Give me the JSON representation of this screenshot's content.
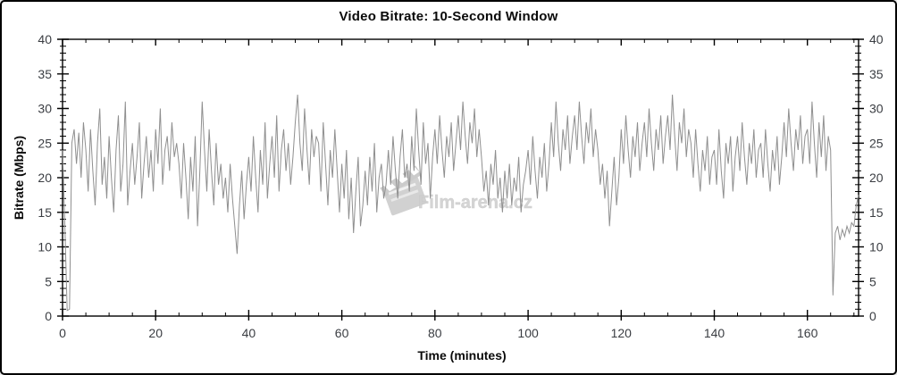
{
  "chart_data": {
    "type": "line",
    "title": "Video Bitrate: 10-Second Window",
    "xlabel": "Time (minutes)",
    "ylabel": "Bitrate (Mbps)",
    "xlim": [
      0,
      171
    ],
    "ylim": [
      0,
      40
    ],
    "x_major_ticks": [
      0,
      20,
      40,
      60,
      80,
      100,
      120,
      140,
      160
    ],
    "x_minor_step": 5,
    "y_major_ticks": [
      0,
      5,
      10,
      15,
      20,
      25,
      30,
      35,
      40
    ],
    "y_minor_step": 1,
    "right_axis_mirrored_labels": true,
    "grid": "off",
    "legend": "none",
    "line_color": "#8f8f8f",
    "axis_color": "#000000",
    "x_start": 0,
    "x_step": 0.5,
    "values": [
      24,
      13,
      0.8,
      1.0,
      25,
      27,
      22,
      26.5,
      20,
      28,
      24,
      18,
      27,
      21,
      16,
      25,
      30,
      19,
      23,
      17,
      26,
      20,
      15,
      24,
      29,
      18,
      22,
      31,
      16,
      21,
      25,
      19,
      23,
      28,
      17,
      22,
      26,
      20,
      24,
      18,
      27,
      22,
      30,
      19,
      24,
      26,
      21,
      28,
      23,
      25,
      22,
      17,
      25,
      20,
      14,
      23,
      18,
      26,
      13,
      21,
      31,
      24,
      18,
      27,
      21,
      16,
      25,
      19,
      22,
      17,
      20,
      15,
      22,
      17,
      13,
      9,
      16,
      21,
      14,
      19,
      23,
      18,
      26,
      20,
      15,
      24,
      19,
      28,
      17,
      22,
      26,
      20,
      29,
      18,
      24,
      27,
      21,
      25,
      19,
      23,
      28,
      32,
      25,
      21,
      30,
      24,
      19,
      27,
      23,
      26,
      25,
      18,
      28,
      22,
      16,
      24,
      20,
      27,
      21,
      15,
      22,
      17,
      24,
      14,
      20,
      12,
      18,
      23,
      13,
      16,
      21,
      16,
      23,
      18,
      25,
      15,
      20,
      22,
      17,
      19,
      24,
      19,
      26,
      21,
      17,
      23,
      27,
      20,
      22,
      18,
      26,
      21,
      30,
      24,
      19,
      28,
      22,
      25,
      17,
      23,
      27,
      22,
      29,
      24,
      20,
      26,
      23,
      28,
      21,
      25,
      29,
      24,
      31,
      26,
      22,
      28,
      25,
      30,
      23,
      27,
      23,
      18,
      21,
      16,
      22,
      19,
      24,
      17,
      20,
      15,
      21,
      17,
      22,
      16,
      20,
      18,
      23,
      15,
      19,
      21,
      24,
      19,
      26,
      21,
      17,
      23,
      20,
      25,
      18,
      22,
      28,
      23,
      31,
      25,
      21,
      27,
      24,
      29,
      22,
      26,
      29,
      24,
      31,
      26,
      22,
      28,
      25,
      30,
      23,
      27,
      24,
      19,
      22,
      17,
      21,
      13,
      18,
      23,
      16,
      20,
      27,
      22,
      29,
      24,
      20,
      26,
      23,
      28,
      21,
      25,
      28,
      23,
      30,
      25,
      21,
      27,
      24,
      29,
      22,
      26,
      29,
      24,
      32,
      26,
      21,
      28,
      25,
      30,
      23,
      27,
      25,
      20,
      27,
      22,
      18,
      24,
      21,
      26,
      19,
      23,
      24,
      19,
      27,
      21,
      17,
      25,
      22,
      26,
      18,
      23,
      26,
      21,
      28,
      23,
      19,
      25,
      22,
      27,
      20,
      24,
      25,
      20,
      27,
      22,
      18,
      24,
      21,
      26,
      19,
      23,
      28,
      23,
      30,
      25,
      21,
      27,
      24,
      29,
      22,
      26,
      27,
      22,
      31,
      25,
      20,
      28,
      23,
      29,
      21,
      26,
      24,
      3,
      12,
      13,
      11,
      12.5,
      11.5,
      13,
      12,
      13.5,
      13,
      16,
      17.5
    ]
  },
  "watermark": {
    "text": "Film-arena.cz",
    "icon": "clapperboard-icon",
    "color": "#c7c7c7"
  }
}
